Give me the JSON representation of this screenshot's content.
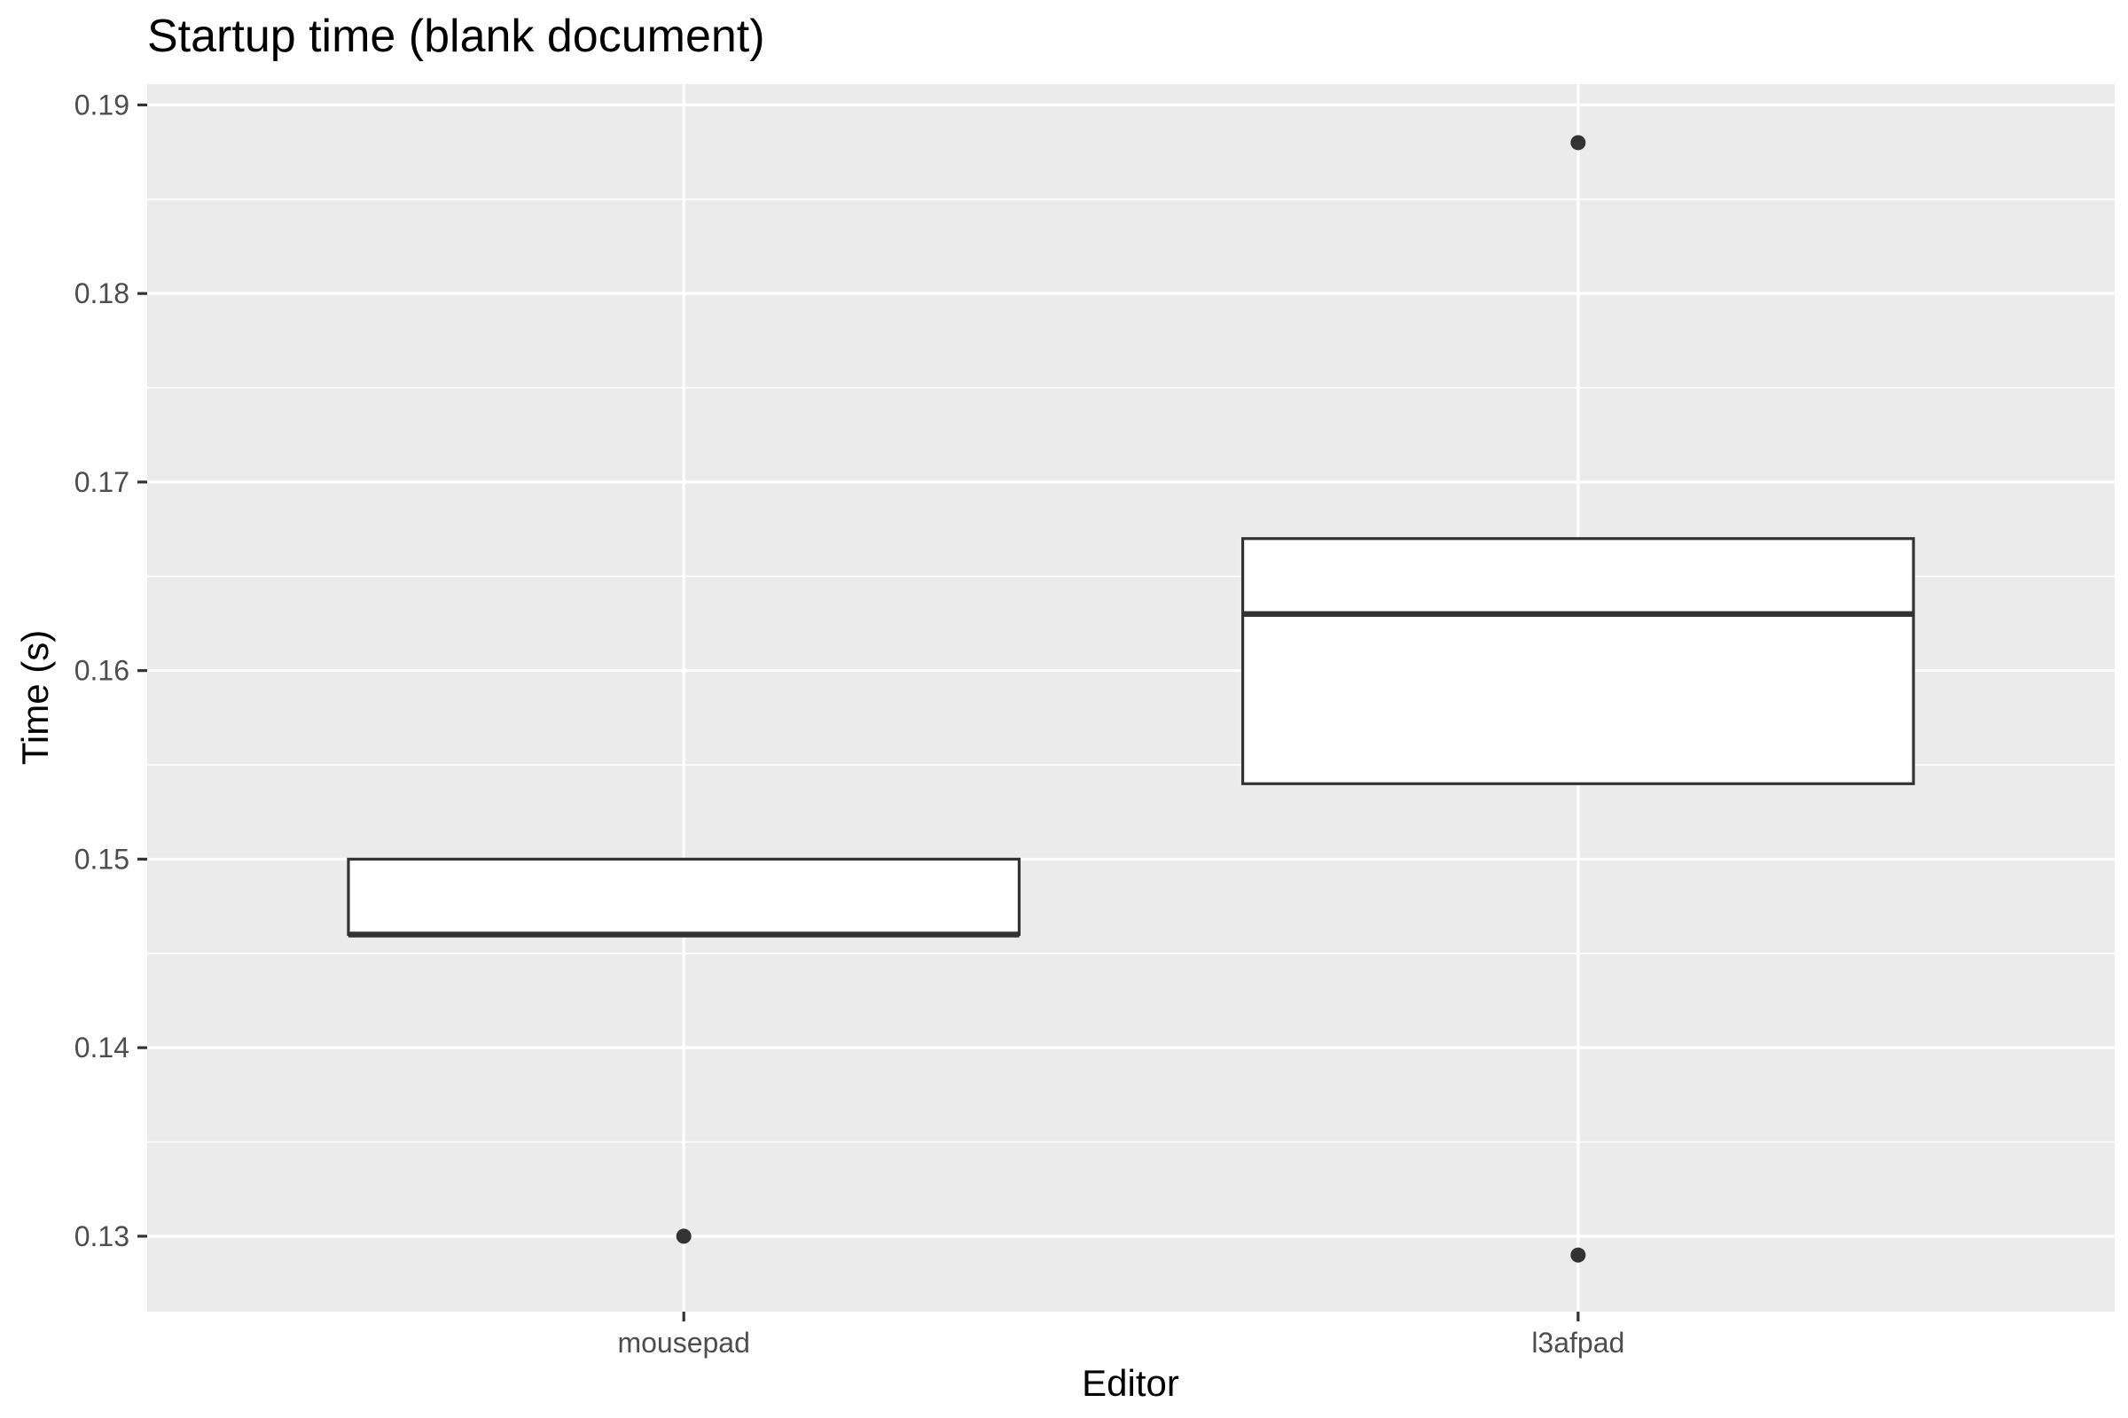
{
  "chart_data": {
    "type": "box",
    "title": "Startup time (blank document)",
    "xlabel": "Editor",
    "ylabel": "Time (s)",
    "categories": [
      "mousepad",
      "l3afpad"
    ],
    "ylim": [
      0.126,
      0.1911
    ],
    "y_ticks": [
      0.13,
      0.14,
      0.15,
      0.16,
      0.17,
      0.18,
      0.19
    ],
    "y_tick_labels": [
      "0.13",
      "0.14",
      "0.15",
      "0.16",
      "0.17",
      "0.18",
      "0.19"
    ],
    "grid": true,
    "boxes": [
      {
        "category": "mousepad",
        "q1": 0.146,
        "median": 0.146,
        "q3": 0.15,
        "whisker_low": 0.146,
        "whisker_high": 0.15,
        "outliers": [
          0.13
        ]
      },
      {
        "category": "l3afpad",
        "q1": 0.154,
        "median": 0.163,
        "q3": 0.167,
        "whisker_low": 0.154,
        "whisker_high": 0.167,
        "outliers": [
          0.188,
          0.129
        ]
      }
    ],
    "colors": {
      "panel": "#ebebeb",
      "grid": "#ffffff",
      "box_fill": "#ffffff",
      "box_line": "#333333",
      "point": "#333333"
    }
  }
}
